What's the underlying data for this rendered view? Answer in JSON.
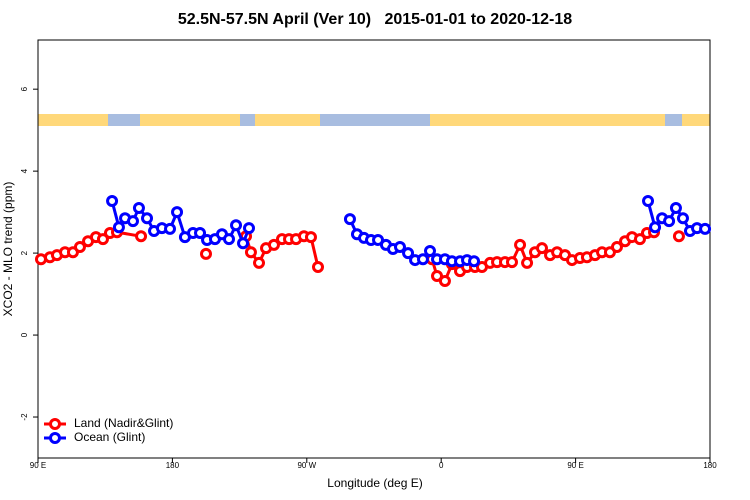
{
  "chart_data": {
    "type": "line",
    "title": "52.5N-57.5N April (Ver 10)   2015-01-01 to 2020-12-18",
    "x_label": "Longitude (deg E)",
    "y_label": "XCO2 - MLO trend (ppm)",
    "xlim": [
      90,
      540
    ],
    "ylim": [
      -3,
      7.2
    ],
    "xticks": [
      {
        "value": 90,
        "label": "90 E"
      },
      {
        "value": 180,
        "label": "180"
      },
      {
        "value": 270,
        "label": "90 W"
      },
      {
        "value": 360,
        "label": "0"
      },
      {
        "value": 450,
        "label": "90 E"
      },
      {
        "value": 540,
        "label": "180"
      }
    ],
    "yticks": [
      -2,
      0,
      2,
      4,
      6
    ],
    "legend": "bottomleft",
    "series": [
      {
        "name": "Land (Nadir&Glint)",
        "color": "#ff0000",
        "x": [
          92.0,
          98.0,
          102.7,
          108.1,
          113.4,
          118.1,
          123.5,
          128.8,
          133.5,
          138.2,
          142.9,
          159.0,
          null,
          202.5,
          null,
          229.3,
          232.6,
          238.0,
          242.7,
          248.0,
          253.4,
          258.1,
          262.8,
          268.1,
          272.8,
          277.5,
          null,
          353.9,
          357.2,
          362.5,
          367.2,
          372.6,
          377.3,
          382.6,
          387.3,
          392.7,
          397.4,
          402.7,
          407.4,
          412.8,
          417.5,
          422.8,
          427.5,
          432.9,
          437.6,
          442.9,
          447.6,
          452.9,
          457.6,
          463.0,
          467.7,
          473.0,
          477.7,
          483.1,
          487.8,
          493.1,
          497.8,
          502.5,
          null,
          519.2
        ],
        "values": [
          1.85,
          1.9,
          1.95,
          2.02,
          2.02,
          2.15,
          2.29,
          2.39,
          2.34,
          2.49,
          2.51,
          2.41,
          null,
          1.98,
          null,
          2.41,
          2.02,
          1.76,
          2.12,
          2.2,
          2.34,
          2.34,
          2.34,
          2.41,
          2.39,
          1.66,
          null,
          1.85,
          1.44,
          1.32,
          1.73,
          1.56,
          1.66,
          1.66,
          1.66,
          1.76,
          1.78,
          1.78,
          1.78,
          2.2,
          1.76,
          2.02,
          2.12,
          1.95,
          2.02,
          1.95,
          1.83,
          1.88,
          1.9,
          1.95,
          2.02,
          2.02,
          2.15,
          2.29,
          2.39,
          2.34,
          2.49,
          2.51,
          null,
          2.41
        ]
      },
      {
        "name": "Ocean (Glint)",
        "color": "#0000ff",
        "x": [
          139.6,
          144.2,
          148.3,
          153.6,
          157.6,
          163.0,
          167.7,
          173.0,
          178.4,
          183.1,
          188.4,
          193.8,
          198.5,
          203.2,
          208.5,
          213.2,
          217.9,
          222.6,
          227.3,
          231.3,
          null,
          298.9,
          303.6,
          308.3,
          313.0,
          317.7,
          323.0,
          327.7,
          332.4,
          337.8,
          342.5,
          347.8,
          352.5,
          357.2,
          362.5,
          367.2,
          372.6,
          377.3,
          382.0,
          null,
          498.5,
          503.2,
          507.9,
          512.6,
          517.2,
          521.9,
          526.6,
          531.3,
          536.7
        ],
        "values": [
          3.27,
          2.63,
          2.85,
          2.78,
          3.1,
          2.85,
          2.54,
          2.61,
          2.59,
          3.0,
          2.39,
          2.49,
          2.49,
          2.32,
          2.34,
          2.46,
          2.34,
          2.68,
          2.24,
          2.61,
          null,
          2.83,
          2.46,
          2.37,
          2.32,
          2.32,
          2.2,
          2.1,
          2.15,
          2.0,
          1.83,
          1.85,
          2.05,
          1.85,
          1.85,
          1.8,
          1.8,
          1.83,
          1.8,
          null,
          3.27,
          2.63,
          2.85,
          2.78,
          3.1,
          2.85,
          2.54,
          2.61,
          2.59
        ]
      }
    ]
  }
}
